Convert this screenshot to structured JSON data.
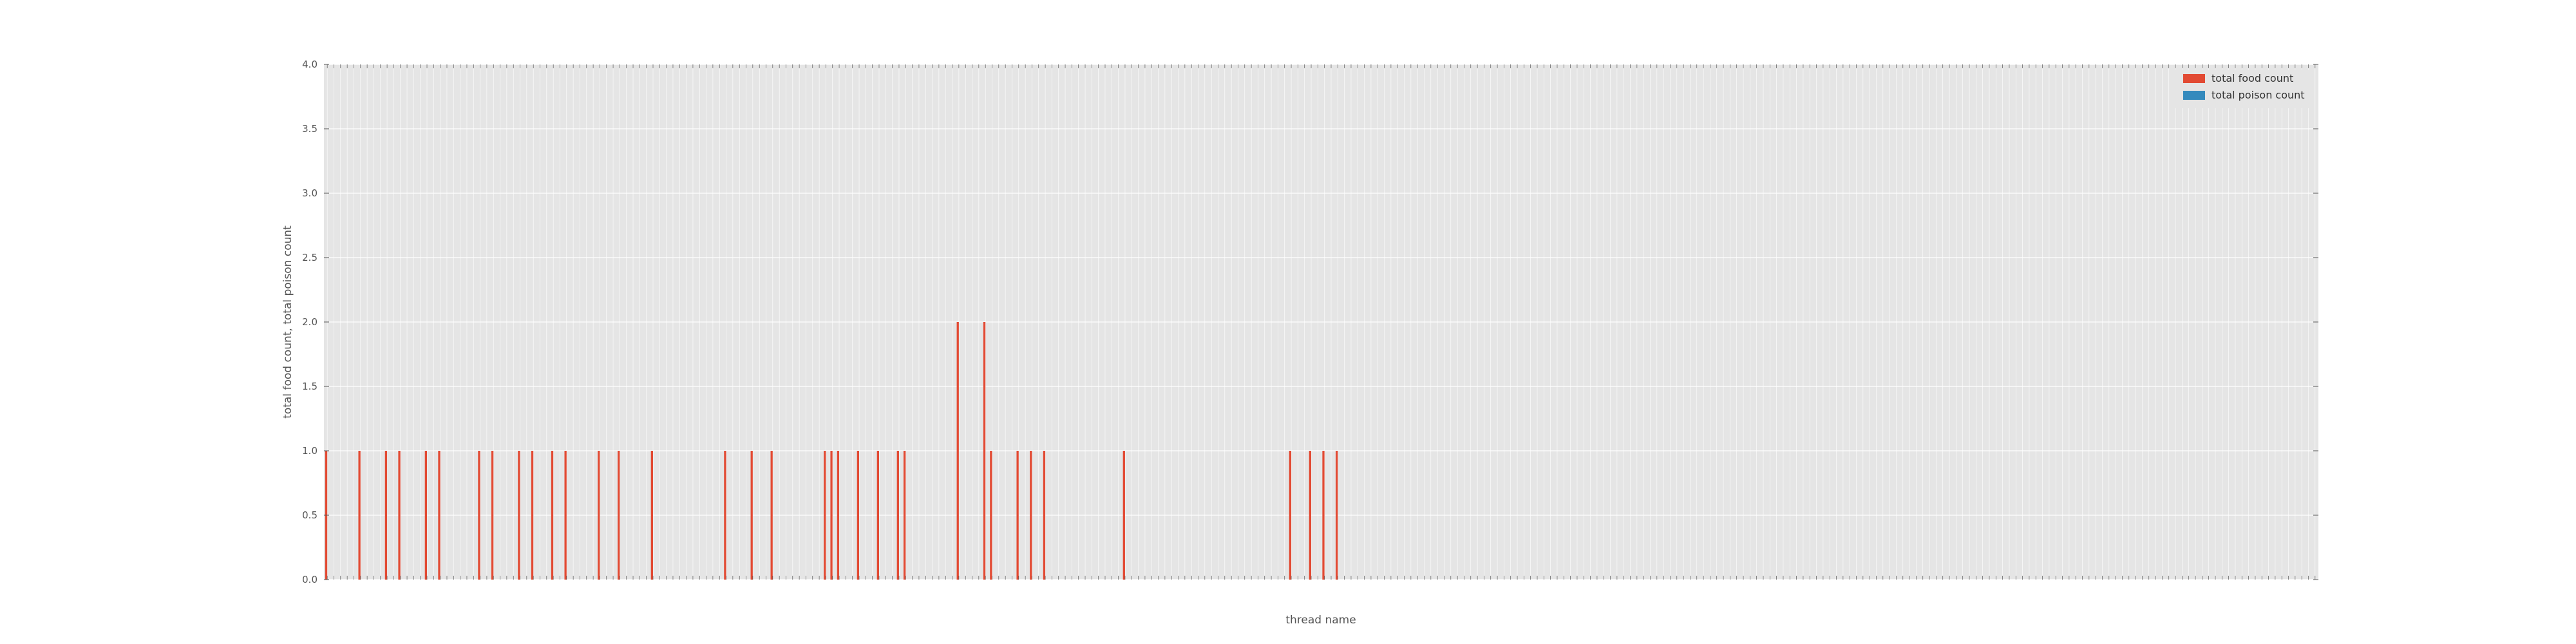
{
  "chart_data": {
    "type": "bar",
    "xlabel": "thread name",
    "ylabel": "total food count, total poison count",
    "ylim": [
      0,
      4
    ],
    "yticks": [
      "0.0",
      "0.5",
      "1.0",
      "1.5",
      "2.0",
      "2.5",
      "3.0",
      "3.5",
      "4.0"
    ],
    "grid": true,
    "legend_position": "top-right",
    "category_count": 300,
    "series": [
      {
        "name": "total food count",
        "color": "#e24a33",
        "values": [
          1,
          0,
          0,
          0,
          0,
          1,
          0,
          0,
          0,
          1,
          0,
          1,
          0,
          0,
          0,
          1,
          0,
          1,
          0,
          0,
          0,
          0,
          0,
          1,
          0,
          1,
          0,
          0,
          0,
          1,
          0,
          1,
          0,
          0,
          1,
          0,
          1,
          0,
          0,
          0,
          0,
          1,
          0,
          0,
          1,
          0,
          0,
          0,
          0,
          1,
          0,
          0,
          0,
          0,
          0,
          0,
          0,
          0,
          0,
          0,
          1,
          0,
          0,
          0,
          1,
          0,
          0,
          1,
          0,
          0,
          0,
          0,
          0,
          0,
          0,
          1,
          1,
          1,
          0,
          0,
          1,
          0,
          0,
          1,
          0,
          0,
          1,
          1,
          0,
          0,
          0,
          0,
          0,
          0,
          0,
          2,
          0,
          0,
          0,
          2,
          1,
          0,
          0,
          0,
          1,
          0,
          1,
          0,
          1,
          0,
          0,
          0,
          0,
          0,
          0,
          0,
          0,
          0,
          0,
          0,
          1,
          0,
          0,
          0,
          0,
          0,
          0,
          0,
          0,
          0,
          0,
          0,
          0,
          0,
          0,
          0,
          0,
          0,
          0,
          0,
          0,
          0,
          0,
          0,
          0,
          1,
          0,
          0,
          1,
          0,
          1,
          0,
          1,
          0,
          0,
          0,
          0,
          0,
          0,
          0,
          0,
          0,
          0,
          0,
          0,
          0,
          0,
          0,
          0,
          0,
          0,
          0,
          0,
          0,
          0,
          0,
          0,
          0,
          0,
          0,
          0,
          0,
          0,
          0,
          0,
          0,
          0,
          0,
          0,
          0,
          0,
          0,
          0,
          0,
          0,
          0,
          0,
          0,
          0,
          0,
          0,
          0,
          0,
          0,
          0,
          0,
          0,
          0,
          0,
          0,
          0,
          0,
          0,
          0,
          0,
          0,
          0,
          0,
          0,
          0,
          0,
          0,
          0,
          0,
          0,
          0,
          0,
          0,
          0,
          0,
          0,
          0,
          0,
          0,
          0,
          0,
          0,
          0,
          0,
          0,
          0,
          0,
          0,
          0,
          0,
          0,
          0,
          0,
          0,
          0,
          0,
          0,
          0,
          0,
          0,
          0,
          0,
          0,
          0,
          0,
          0,
          0,
          0,
          0,
          0,
          0,
          0,
          0,
          0,
          0,
          0,
          0,
          0,
          0,
          0,
          0,
          0,
          0,
          0,
          0,
          0,
          0,
          0,
          0,
          0,
          0,
          0,
          0,
          0,
          0,
          0,
          0,
          0,
          0,
          0,
          0,
          0,
          0,
          0,
          0,
          0,
          0,
          0,
          0,
          0,
          0,
          0,
          0,
          0,
          0,
          0,
          0,
          0,
          0
        ]
      },
      {
        "name": "total poison count",
        "color": "#348abd",
        "values": []
      }
    ]
  }
}
